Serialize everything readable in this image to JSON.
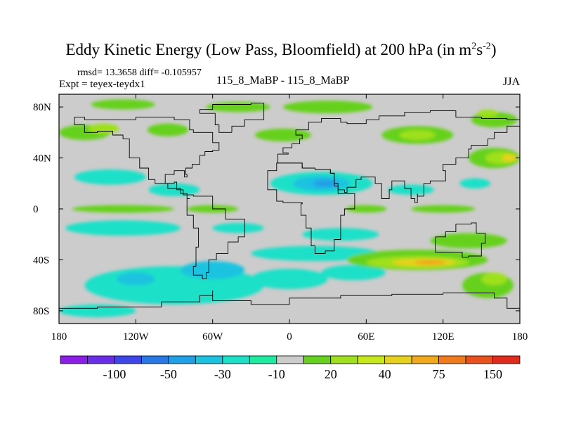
{
  "chart_data": {
    "type": "heatmap",
    "title": "Eddy Kinetic Energy (Low Pass, Bloomfield) at 200 hPa (in m",
    "title_unit_sup1": "2",
    "title_unit_mid": "s",
    "title_unit_sup2": "-2",
    "title_close": ")",
    "stats_text": "rmsd= 13.3658 diff= -0.105957",
    "expt_label": "Expt = teyex-teydx1",
    "center_label": "115_8_MaBP - 115_8_MaBP",
    "season_label": "JJA",
    "x_range": [
      -180,
      180
    ],
    "y_range": [
      -90,
      90
    ],
    "x_ticks": [
      {
        "value": -180,
        "label": "180"
      },
      {
        "value": -120,
        "label": "120W"
      },
      {
        "value": -60,
        "label": "60W"
      },
      {
        "value": 0,
        "label": "0"
      },
      {
        "value": 60,
        "label": "60E"
      },
      {
        "value": 120,
        "label": "120E"
      },
      {
        "value": 180,
        "label": "180"
      }
    ],
    "y_ticks": [
      {
        "value": 80,
        "label": "80N"
      },
      {
        "value": 40,
        "label": "40N"
      },
      {
        "value": 0,
        "label": "0"
      },
      {
        "value": -40,
        "label": "40S"
      },
      {
        "value": -80,
        "label": "80S"
      }
    ],
    "colorbar": {
      "colors": [
        "#8c1ee6",
        "#6a2ee8",
        "#3f46e6",
        "#2a78e6",
        "#20a0e6",
        "#1cc3e0",
        "#1ee0c8",
        "#1eeaa0",
        "#cccccc",
        "#66d11e",
        "#9ee01e",
        "#c8e81e",
        "#e6d21e",
        "#f0a81e",
        "#f07a1e",
        "#e8501e",
        "#e02a1e"
      ],
      "labels": [
        {
          "after_box": 2,
          "text": "-100"
        },
        {
          "after_box": 4,
          "text": "-50"
        },
        {
          "after_box": 6,
          "text": "-30"
        },
        {
          "after_box": 8,
          "text": "-10"
        },
        {
          "after_box": 10,
          "text": "20"
        },
        {
          "after_box": 12,
          "text": "40"
        },
        {
          "after_box": 14,
          "text": "75"
        },
        {
          "after_box": 16,
          "text": "150"
        }
      ]
    },
    "background_color": "#cccccc",
    "regions": [
      {
        "lon": -160,
        "lat": 60,
        "rlon": 20,
        "rlat": 6,
        "color": "#66d11e"
      },
      {
        "lon": -145,
        "lat": 63,
        "rlon": 12,
        "rlat": 4,
        "color": "#9ee01e"
      },
      {
        "lon": -95,
        "lat": 62,
        "rlon": 16,
        "rlat": 5,
        "color": "#66d11e"
      },
      {
        "lon": -130,
        "lat": 82,
        "rlon": 25,
        "rlat": 4,
        "color": "#66d11e"
      },
      {
        "lon": -40,
        "lat": 80,
        "rlon": 25,
        "rlat": 4,
        "color": "#66d11e"
      },
      {
        "lon": 30,
        "lat": 80,
        "rlon": 35,
        "rlat": 5,
        "color": "#66d11e"
      },
      {
        "lon": -5,
        "lat": 58,
        "rlon": 22,
        "rlat": 5,
        "color": "#66d11e"
      },
      {
        "lon": 100,
        "lat": 58,
        "rlon": 28,
        "rlat": 7,
        "color": "#66d11e"
      },
      {
        "lon": 100,
        "lat": 58,
        "rlon": 14,
        "rlat": 4,
        "color": "#9ee01e"
      },
      {
        "lon": 160,
        "lat": 40,
        "rlon": 20,
        "rlat": 8,
        "color": "#66d11e"
      },
      {
        "lon": 165,
        "lat": 40,
        "rlon": 12,
        "rlat": 5,
        "color": "#9ee01e"
      },
      {
        "lon": 172,
        "lat": 40,
        "rlon": 6,
        "rlat": 3,
        "color": "#e6d21e"
      },
      {
        "lon": 160,
        "lat": 70,
        "rlon": 18,
        "rlat": 6,
        "color": "#66d11e"
      },
      {
        "lon": 155,
        "lat": 75,
        "rlon": 8,
        "rlat": 3,
        "color": "#9ee01e"
      },
      {
        "lon": -140,
        "lat": 25,
        "rlon": 28,
        "rlat": 6,
        "color": "#1ee0c8"
      },
      {
        "lon": -90,
        "lat": 15,
        "rlon": 20,
        "rlat": 5,
        "color": "#1ee0c8"
      },
      {
        "lon": 25,
        "lat": 20,
        "rlon": 40,
        "rlat": 9,
        "color": "#1ee0c8"
      },
      {
        "lon": 25,
        "lat": 20,
        "rlon": 22,
        "rlat": 6,
        "color": "#1cc3e0"
      },
      {
        "lon": 28,
        "lat": 20,
        "rlon": 10,
        "rlat": 3,
        "color": "#20a0e6"
      },
      {
        "lon": 95,
        "lat": 15,
        "rlon": 18,
        "rlat": 4,
        "color": "#1ee0c8"
      },
      {
        "lon": 145,
        "lat": 20,
        "rlon": 12,
        "rlat": 4,
        "color": "#1ee0c8"
      },
      {
        "lon": -130,
        "lat": 0,
        "rlon": 40,
        "rlat": 3,
        "color": "#66d11e"
      },
      {
        "lon": -60,
        "lat": 0,
        "rlon": 20,
        "rlat": 3,
        "color": "#66d11e"
      },
      {
        "lon": 60,
        "lat": 0,
        "rlon": 16,
        "rlat": 3,
        "color": "#66d11e"
      },
      {
        "lon": 120,
        "lat": 0,
        "rlon": 25,
        "rlat": 3,
        "color": "#66d11e"
      },
      {
        "lon": -130,
        "lat": -15,
        "rlon": 45,
        "rlat": 6,
        "color": "#1ee0c8"
      },
      {
        "lon": -40,
        "lat": -15,
        "rlon": 20,
        "rlat": 4,
        "color": "#1ee0c8"
      },
      {
        "lon": 40,
        "lat": -20,
        "rlon": 30,
        "rlat": 5,
        "color": "#1ee0c8"
      },
      {
        "lon": -90,
        "lat": -60,
        "rlon": 70,
        "rlat": 15,
        "color": "#1ee0c8"
      },
      {
        "lon": -60,
        "lat": -48,
        "rlon": 25,
        "rlat": 7,
        "color": "#1cc3e0"
      },
      {
        "lon": -120,
        "lat": -55,
        "rlon": 15,
        "rlat": 5,
        "color": "#1cc3e0"
      },
      {
        "lon": 20,
        "lat": -35,
        "rlon": 50,
        "rlat": 6,
        "color": "#1ee0c8"
      },
      {
        "lon": 0,
        "lat": -55,
        "rlon": 30,
        "rlat": 8,
        "color": "#1ee0c8"
      },
      {
        "lon": 50,
        "lat": -50,
        "rlon": 25,
        "rlat": 6,
        "color": "#1ee0c8"
      },
      {
        "lon": 100,
        "lat": -40,
        "rlon": 55,
        "rlat": 8,
        "color": "#66d11e"
      },
      {
        "lon": 100,
        "lat": -42,
        "rlon": 40,
        "rlat": 5,
        "color": "#9ee01e"
      },
      {
        "lon": 105,
        "lat": -42,
        "rlon": 25,
        "rlat": 3,
        "color": "#e6d21e"
      },
      {
        "lon": 110,
        "lat": -42,
        "rlon": 12,
        "rlat": 2,
        "color": "#f0a81e"
      },
      {
        "lon": 140,
        "lat": -25,
        "rlon": 30,
        "rlat": 6,
        "color": "#66d11e"
      },
      {
        "lon": 155,
        "lat": -60,
        "rlon": 20,
        "rlat": 10,
        "color": "#66d11e"
      },
      {
        "lon": 160,
        "lat": -55,
        "rlon": 10,
        "rlat": 5,
        "color": "#9ee01e"
      },
      {
        "lon": -150,
        "lat": -80,
        "rlon": 30,
        "rlat": 5,
        "color": "#1ee0c8"
      }
    ],
    "coastlines": [
      [
        [
          -125,
          48
        ],
        [
          -125,
          40
        ],
        [
          -117,
          32
        ],
        [
          -110,
          23
        ],
        [
          -105,
          20
        ],
        [
          -95,
          16
        ],
        [
          -85,
          12
        ],
        [
          -80,
          8
        ],
        [
          -78,
          8
        ],
        [
          -80,
          0
        ],
        [
          -80,
          -5
        ],
        [
          -75,
          -15
        ],
        [
          -71,
          -30
        ],
        [
          -73,
          -45
        ],
        [
          -75,
          -52
        ],
        [
          -68,
          -55
        ],
        [
          -65,
          -50
        ],
        [
          -63,
          -40
        ],
        [
          -57,
          -35
        ],
        [
          -48,
          -26
        ],
        [
          -40,
          -22
        ],
        [
          -35,
          -8
        ],
        [
          -50,
          0
        ],
        [
          -60,
          10
        ],
        [
          -75,
          11
        ],
        [
          -83,
          15
        ],
        [
          -88,
          21
        ],
        [
          -90,
          20
        ],
        [
          -97,
          27
        ],
        [
          -90,
          30
        ],
        [
          -82,
          25
        ],
        [
          -80,
          27
        ],
        [
          -81,
          32
        ],
        [
          -76,
          35
        ],
        [
          -70,
          42
        ],
        [
          -66,
          45
        ],
        [
          -60,
          46
        ],
        [
          -55,
          52
        ],
        [
          -60,
          60
        ],
        [
          -75,
          62
        ],
        [
          -78,
          70
        ],
        [
          -90,
          72
        ],
        [
          -120,
          70
        ],
        [
          -140,
          70
        ],
        [
          -160,
          72
        ],
        [
          -168,
          66
        ],
        [
          -160,
          60
        ],
        [
          -150,
          61
        ],
        [
          -138,
          58
        ],
        [
          -130,
          55
        ],
        [
          -125,
          48
        ]
      ],
      [
        [
          -45,
          60
        ],
        [
          -55,
          66
        ],
        [
          -58,
          75
        ],
        [
          -70,
          78
        ],
        [
          -60,
          82
        ],
        [
          -30,
          83
        ],
        [
          -20,
          80
        ],
        [
          -20,
          70
        ],
        [
          -35,
          65
        ],
        [
          -45,
          60
        ]
      ],
      [
        [
          -10,
          36
        ],
        [
          -9,
          43
        ],
        [
          -1,
          44
        ],
        [
          -5,
          48
        ],
        [
          2,
          51
        ],
        [
          8,
          55
        ],
        [
          10,
          58
        ],
        [
          5,
          62
        ],
        [
          15,
          68
        ],
        [
          25,
          71
        ],
        [
          40,
          68
        ],
        [
          45,
          67
        ],
        [
          60,
          70
        ],
        [
          70,
          73
        ],
        [
          90,
          76
        ],
        [
          110,
          77
        ],
        [
          130,
          72
        ],
        [
          150,
          71
        ],
        [
          170,
          70
        ],
        [
          180,
          66
        ],
        [
          180,
          65
        ],
        [
          170,
          60
        ],
        [
          160,
          55
        ],
        [
          155,
          50
        ],
        [
          142,
          47
        ],
        [
          140,
          40
        ],
        [
          130,
          35
        ],
        [
          120,
          30
        ],
        [
          122,
          22
        ],
        [
          110,
          20
        ],
        [
          105,
          10
        ],
        [
          100,
          12
        ],
        [
          100,
          5
        ],
        [
          98,
          8
        ],
        [
          95,
          16
        ],
        [
          90,
          22
        ],
        [
          80,
          15
        ],
        [
          78,
          8
        ],
        [
          72,
          20
        ],
        [
          67,
          25
        ],
        [
          57,
          25
        ],
        [
          56,
          23
        ],
        [
          52,
          17
        ],
        [
          45,
          13
        ],
        [
          43,
          15
        ],
        [
          38,
          20
        ],
        [
          35,
          28
        ],
        [
          32,
          31
        ],
        [
          30,
          31
        ],
        [
          20,
          32
        ],
        [
          10,
          36
        ],
        [
          0,
          36
        ],
        [
          -5,
          36
        ],
        [
          -10,
          36
        ]
      ],
      [
        [
          -17,
          21
        ],
        [
          -17,
          15
        ],
        [
          -10,
          6
        ],
        [
          -5,
          5
        ],
        [
          5,
          5
        ],
        [
          10,
          4
        ],
        [
          9,
          -5
        ],
        [
          13,
          -15
        ],
        [
          17,
          -29
        ],
        [
          20,
          -35
        ],
        [
          28,
          -33
        ],
        [
          35,
          -24
        ],
        [
          40,
          -15
        ],
        [
          40,
          -5
        ],
        [
          43,
          0
        ],
        [
          51,
          12
        ],
        [
          43,
          12
        ],
        [
          38,
          18
        ],
        [
          35,
          28
        ],
        [
          32,
          31
        ],
        [
          20,
          32
        ],
        [
          10,
          36
        ],
        [
          0,
          36
        ],
        [
          -5,
          36
        ],
        [
          -10,
          30
        ],
        [
          -17,
          21
        ]
      ],
      [
        [
          114,
          -22
        ],
        [
          122,
          -18
        ],
        [
          130,
          -12
        ],
        [
          137,
          -12
        ],
        [
          142,
          -11
        ],
        [
          146,
          -19
        ],
        [
          153,
          -27
        ],
        [
          150,
          -37
        ],
        [
          140,
          -38
        ],
        [
          135,
          -34
        ],
        [
          116,
          -34
        ],
        [
          114,
          -22
        ]
      ],
      [
        [
          -180,
          -78
        ],
        [
          -150,
          -77
        ],
        [
          -100,
          -73
        ],
        [
          -70,
          -68
        ],
        [
          -60,
          -64
        ],
        [
          -60,
          -72
        ],
        [
          -30,
          -75
        ],
        [
          0,
          -70
        ],
        [
          40,
          -68
        ],
        [
          80,
          -67
        ],
        [
          120,
          -66
        ],
        [
          160,
          -70
        ],
        [
          170,
          -78
        ],
        [
          180,
          -78
        ]
      ]
    ]
  }
}
